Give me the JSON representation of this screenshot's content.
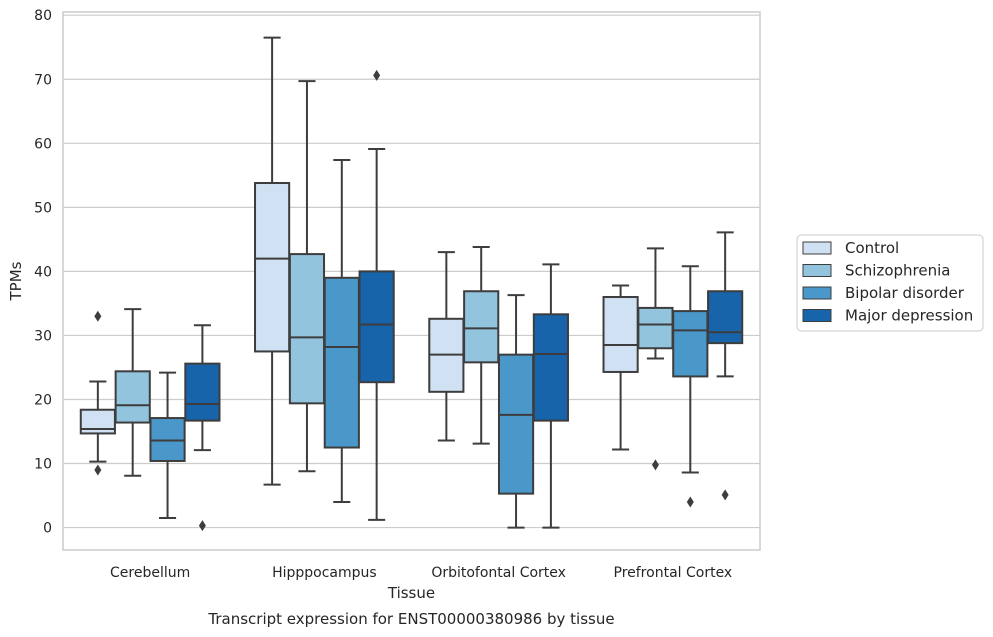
{
  "chart_data": {
    "type": "box",
    "title": "Transcript expression for ENST00000380986 by tissue",
    "xlabel": "Tissue",
    "ylabel": "TPMs",
    "ylim": [
      -3.5,
      80.5
    ],
    "yticks": [
      0,
      10,
      20,
      30,
      40,
      50,
      60,
      70,
      80
    ],
    "grid": true,
    "legend_position": "right",
    "categories": [
      "Cerebellum",
      "Hipppocampus",
      "Orbitofontal Cortex",
      "Prefrontal Cortex"
    ],
    "series": [
      {
        "name": "Control",
        "color": "#cfe1f2",
        "boxes": [
          {
            "whislo": 10.3,
            "q1": 14.7,
            "med": 15.4,
            "q3": 18.4,
            "whishi": 22.8,
            "fliers": [
              33.0,
              9.0
            ]
          },
          {
            "whislo": 6.7,
            "q1": 27.5,
            "med": 42.0,
            "q3": 53.8,
            "whishi": 76.5,
            "fliers": []
          },
          {
            "whislo": 13.6,
            "q1": 21.2,
            "med": 27.0,
            "q3": 32.6,
            "whishi": 43.0,
            "fliers": []
          },
          {
            "whislo": 12.2,
            "q1": 24.3,
            "med": 28.5,
            "q3": 36.0,
            "whishi": 37.8,
            "fliers": []
          }
        ]
      },
      {
        "name": "Schizophrenia",
        "color": "#93c4de",
        "boxes": [
          {
            "whislo": 8.1,
            "q1": 16.4,
            "med": 19.1,
            "q3": 24.4,
            "whishi": 34.1,
            "fliers": []
          },
          {
            "whislo": 8.8,
            "q1": 19.4,
            "med": 29.7,
            "q3": 42.7,
            "whishi": 69.7,
            "fliers": []
          },
          {
            "whislo": 13.1,
            "q1": 25.8,
            "med": 31.1,
            "q3": 36.9,
            "whishi": 43.8,
            "fliers": []
          },
          {
            "whislo": 26.4,
            "q1": 28.0,
            "med": 31.7,
            "q3": 34.3,
            "whishi": 43.6,
            "fliers": [
              9.8
            ]
          }
        ]
      },
      {
        "name": "Bipolar disorder",
        "color": "#4a98c9",
        "boxes": [
          {
            "whislo": 1.5,
            "q1": 10.4,
            "med": 13.6,
            "q3": 17.1,
            "whishi": 24.2,
            "fliers": []
          },
          {
            "whislo": 4.0,
            "q1": 12.5,
            "med": 28.2,
            "q3": 39.0,
            "whishi": 57.4,
            "fliers": []
          },
          {
            "whislo": 0.0,
            "q1": 5.3,
            "med": 17.6,
            "q3": 27.0,
            "whishi": 36.3,
            "fliers": []
          },
          {
            "whislo": 8.6,
            "q1": 23.6,
            "med": 30.8,
            "q3": 33.8,
            "whishi": 40.8,
            "fliers": [
              4.0
            ]
          }
        ]
      },
      {
        "name": "Major depression",
        "color": "#1764ab",
        "boxes": [
          {
            "whislo": 12.1,
            "q1": 16.7,
            "med": 19.3,
            "q3": 25.6,
            "whishi": 31.6,
            "fliers": [
              0.3
            ]
          },
          {
            "whislo": 1.2,
            "q1": 22.7,
            "med": 31.7,
            "q3": 40.0,
            "whishi": 59.1,
            "fliers": [
              70.6
            ]
          },
          {
            "whislo": 0.0,
            "q1": 16.7,
            "med": 27.1,
            "q3": 33.3,
            "whishi": 41.1,
            "fliers": []
          },
          {
            "whislo": 23.6,
            "q1": 28.8,
            "med": 30.5,
            "q3": 36.9,
            "whishi": 46.1,
            "fliers": [
              5.1
            ]
          }
        ]
      }
    ]
  }
}
